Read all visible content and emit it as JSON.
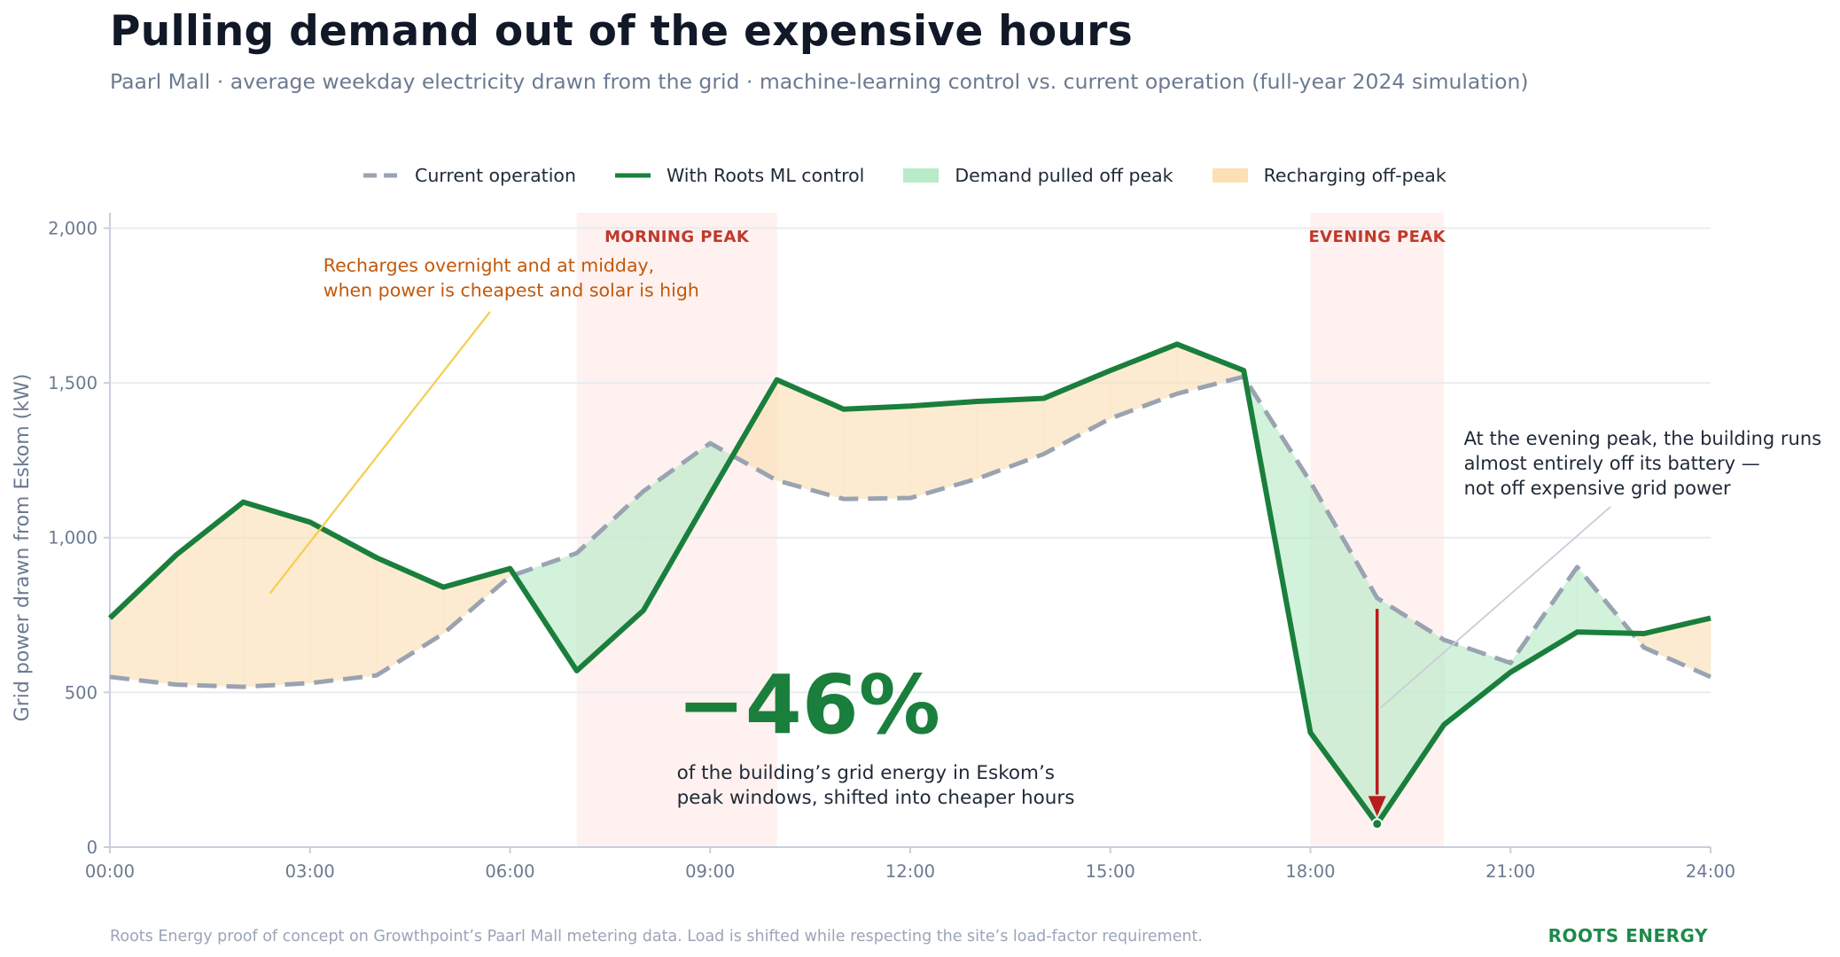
{
  "title": "Pulling demand out of the expensive hours",
  "subtitle": "Paarl Mall · average weekday electricity drawn from the grid · machine-learning control vs. current operation (full-year 2024 simulation)",
  "legend": {
    "current": "Current operation",
    "ml": "With Roots ML control",
    "pulled": "Demand pulled off peak",
    "recharging": "Recharging off-peak"
  },
  "footnote": "Roots Energy proof of concept on Growthpoint’s Paarl Mall metering data.  Load is shifted while respecting the site’s load-factor requirement.",
  "brand": "ROOTS ENERGY",
  "colors": {
    "ml_line": "#1a7f3c",
    "current_line": "#9aa3b2",
    "pulled_fill": "#b8ebc8",
    "recharging_fill": "#fbe0b4",
    "peak_band": "#fdecea",
    "peak_label": "#c0392b",
    "arrow": "#b91c1c"
  },
  "chart_data": {
    "type": "line",
    "ylabel": "Grid power drawn from Eskom  (kW)",
    "xlabel": "",
    "x_ticks": [
      "00:00",
      "03:00",
      "06:00",
      "09:00",
      "12:00",
      "15:00",
      "18:00",
      "21:00",
      "24:00"
    ],
    "y_ticks": [
      "0",
      "500",
      "1,000",
      "1,500",
      "2,000"
    ],
    "ylim": [
      0,
      2050
    ],
    "xlim": [
      0,
      24
    ],
    "grid": "horizontal",
    "legend_position": "top-center",
    "x_hours": [
      0,
      1,
      2,
      3,
      4,
      5,
      6,
      7,
      8,
      9,
      10,
      11,
      12,
      13,
      14,
      15,
      16,
      17,
      18,
      19,
      20,
      21,
      22,
      23,
      24
    ],
    "series": [
      {
        "name": "Current operation",
        "style": "dashed",
        "values": [
          550,
          525,
          518,
          530,
          555,
          690,
          875,
          950,
          1150,
          1305,
          1185,
          1125,
          1128,
          1190,
          1270,
          1385,
          1465,
          1520,
          1180,
          805,
          670,
          595,
          905,
          645,
          550
        ]
      },
      {
        "name": "With Roots ML control",
        "style": "solid",
        "values": [
          740,
          945,
          1115,
          1050,
          935,
          840,
          900,
          570,
          765,
          1140,
          1510,
          1415,
          1425,
          1440,
          1450,
          1540,
          1625,
          1540,
          370,
          75,
          395,
          565,
          695,
          690,
          740
        ]
      }
    ],
    "peak_windows": [
      {
        "label": "MORNING PEAK",
        "start": 7,
        "end": 10
      },
      {
        "label": "EVENING PEAK",
        "start": 18,
        "end": 20
      }
    ],
    "annotations": {
      "recharge": [
        "Recharges overnight and at midday,",
        "when power is cheapest and solar is high"
      ],
      "evening": [
        "At the evening peak, the building runs",
        "almost entirely off its battery —",
        "not off expensive grid power"
      ],
      "headline": "−46%",
      "headline_caption": [
        "of the building’s grid energy in Eskom’s",
        "peak windows, shifted into cheaper hours"
      ]
    }
  }
}
